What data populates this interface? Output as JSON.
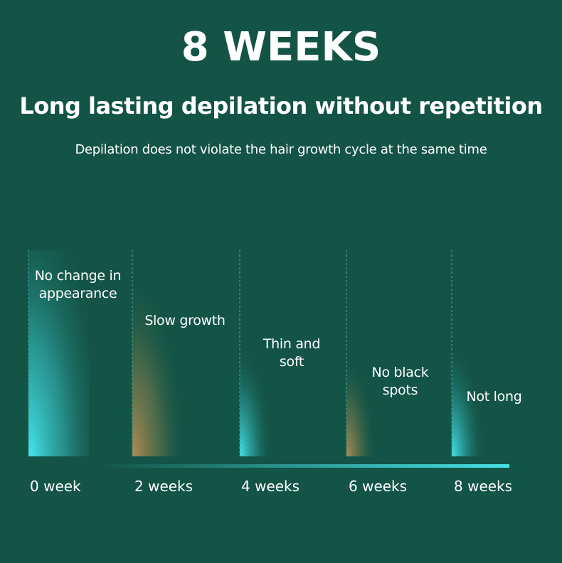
{
  "title": "8 WEEKS",
  "subtitle": "Long lasting depilation without repetition",
  "description": "Depilation does not violate the hair growth cycle at the same time",
  "stages": [
    {
      "note": "No change in appearance",
      "week": "0 week"
    },
    {
      "note": "Slow growth",
      "week": "2 weeks"
    },
    {
      "note": "Thin and soft",
      "week": "4 weeks"
    },
    {
      "note": "No black spots",
      "week": "6 weeks"
    },
    {
      "note": "Not long",
      "week": "8 weeks"
    }
  ]
}
